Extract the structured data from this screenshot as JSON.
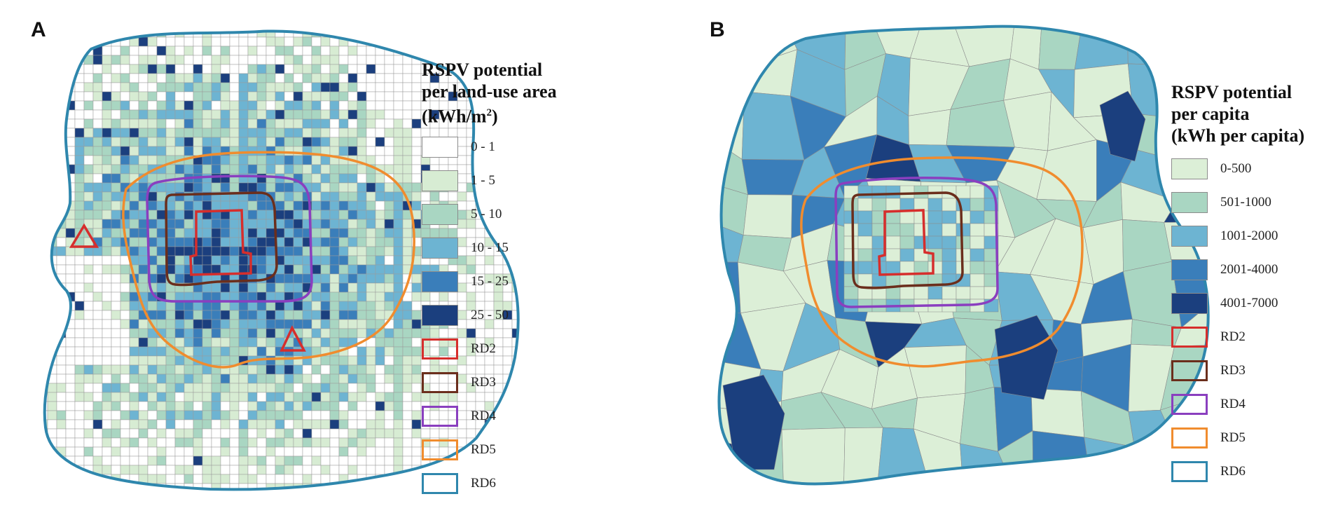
{
  "panelA": {
    "letter": "A",
    "legend_title_line1": "RSPV potential",
    "legend_title_line2": "per land-use area",
    "legend_title_line3_prefix": "(kWh/m",
    "legend_title_line3_sup": "2",
    "legend_title_line3_suffix": ")",
    "classes": [
      {
        "label": "0 - 1",
        "color": "#ffffff"
      },
      {
        "label": "1 - 5",
        "color": "#d7ecd3"
      },
      {
        "label": "5 - 10",
        "color": "#a9d6c2"
      },
      {
        "label": "10 - 15",
        "color": "#6db4d2"
      },
      {
        "label": "15 - 25",
        "color": "#3a7eba"
      },
      {
        "label": "25 - 50",
        "color": "#1b3f7e"
      }
    ],
    "rings": [
      {
        "label": "RD2",
        "color": "#d62e2c"
      },
      {
        "label": "RD3",
        "color": "#6b2e1c"
      },
      {
        "label": "RD4",
        "color": "#8a3fbf"
      },
      {
        "label": "RD5",
        "color": "#f08c2e"
      },
      {
        "label": "RD6",
        "color": "#2f87ad"
      }
    ]
  },
  "panelB": {
    "letter": "B",
    "legend_title_line1": "RSPV potential",
    "legend_title_line2": "per capita",
    "legend_title_line3": "(kWh per capita)",
    "classes": [
      {
        "label": "0-500",
        "color": "#dcefd7"
      },
      {
        "label": "501-1000",
        "color": "#a9d6c2"
      },
      {
        "label": "1001-2000",
        "color": "#6db4d2"
      },
      {
        "label": "2001-4000",
        "color": "#3a7eba"
      },
      {
        "label": "4001-7000",
        "color": "#1b3f7e"
      }
    ],
    "rings": [
      {
        "label": "RD2",
        "color": "#d62e2c"
      },
      {
        "label": "RD3",
        "color": "#6b2e1c"
      },
      {
        "label": "RD4",
        "color": "#8a3fbf"
      },
      {
        "label": "RD5",
        "color": "#f08c2e"
      },
      {
        "label": "RD6",
        "color": "#2f87ad"
      }
    ]
  }
}
